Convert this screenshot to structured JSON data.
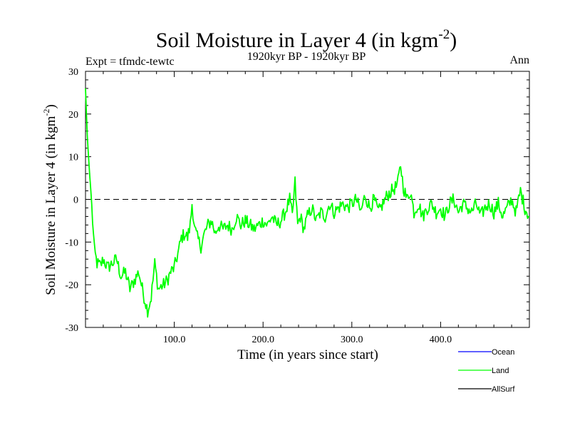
{
  "chart_data": {
    "type": "line",
    "title_main": "Soil Moisture in Layer 4 (in kgm",
    "title_exp": "-2",
    "title_close": ")",
    "subtitle": "1920kyr BP - 1920kyr BP",
    "expt_label": "Expt = tfmdc-tewtc",
    "season_label": "Ann",
    "xlabel": "Time (in years since start)",
    "ylabel_main": "Soil Moisture in Layer 4 (in kgm",
    "ylabel_exp": "-2",
    "ylabel_close": ")",
    "xlim": [
      0,
      500
    ],
    "ylim": [
      -30,
      30
    ],
    "x_ticks": [
      100,
      200,
      300,
      400
    ],
    "x_tick_labels": [
      "100.0",
      "200.0",
      "300.0",
      "400.0"
    ],
    "y_ticks": [
      -30,
      -20,
      -10,
      0,
      10,
      20,
      30
    ],
    "y_tick_labels": [
      "-30",
      "-20",
      "-10",
      "0",
      "10",
      "20",
      "30"
    ],
    "zero_line": 0,
    "legend": [
      {
        "name": "Ocean",
        "color": "#0000ff"
      },
      {
        "name": "Land",
        "color": "#00ff00"
      },
      {
        "name": "AllSurf",
        "color": "#000000"
      }
    ],
    "series": [
      {
        "name": "Land",
        "color": "#00ff00",
        "keypoints": [
          [
            0,
            26
          ],
          [
            2,
            15
          ],
          [
            4,
            8
          ],
          [
            6,
            2
          ],
          [
            8,
            -5
          ],
          [
            10,
            -12
          ],
          [
            13,
            -15
          ],
          [
            17,
            -15.5
          ],
          [
            20,
            -14
          ],
          [
            25,
            -16
          ],
          [
            30,
            -15
          ],
          [
            35,
            -14
          ],
          [
            40,
            -18
          ],
          [
            45,
            -17
          ],
          [
            50,
            -21
          ],
          [
            55,
            -19
          ],
          [
            60,
            -17
          ],
          [
            65,
            -22
          ],
          [
            70,
            -26
          ],
          [
            74,
            -23
          ],
          [
            78,
            -15
          ],
          [
            82,
            -21
          ],
          [
            88,
            -20
          ],
          [
            92,
            -19
          ],
          [
            96,
            -17
          ],
          [
            100,
            -16
          ],
          [
            105,
            -12
          ],
          [
            108,
            -9
          ],
          [
            112,
            -8
          ],
          [
            115,
            -9
          ],
          [
            118,
            -6
          ],
          [
            120,
            -1
          ],
          [
            123,
            -7
          ],
          [
            126,
            -9
          ],
          [
            130,
            -11
          ],
          [
            134,
            -8
          ],
          [
            138,
            -6
          ],
          [
            142,
            -5
          ],
          [
            146,
            -8
          ],
          [
            150,
            -6
          ],
          [
            155,
            -7
          ],
          [
            160,
            -6
          ],
          [
            165,
            -7
          ],
          [
            170,
            -4
          ],
          [
            175,
            -6
          ],
          [
            180,
            -5
          ],
          [
            185,
            -6
          ],
          [
            190,
            -7
          ],
          [
            195,
            -6
          ],
          [
            200,
            -5
          ],
          [
            205,
            -6
          ],
          [
            210,
            -4
          ],
          [
            215,
            -6
          ],
          [
            220,
            -5
          ],
          [
            225,
            -3
          ],
          [
            230,
            0
          ],
          [
            233,
            -4
          ],
          [
            236,
            4
          ],
          [
            239,
            -6
          ],
          [
            242,
            -4
          ],
          [
            246,
            -7
          ],
          [
            250,
            -4
          ],
          [
            255,
            -2
          ],
          [
            260,
            -5
          ],
          [
            265,
            -3
          ],
          [
            270,
            -4
          ],
          [
            275,
            -1
          ],
          [
            280,
            -3
          ],
          [
            285,
            -2
          ],
          [
            290,
            -1
          ],
          [
            295,
            -2
          ],
          [
            300,
            -1
          ],
          [
            305,
            0
          ],
          [
            310,
            -3
          ],
          [
            315,
            1
          ],
          [
            320,
            -2
          ],
          [
            325,
            0
          ],
          [
            330,
            -3
          ],
          [
            335,
            -1
          ],
          [
            340,
            1
          ],
          [
            345,
            2
          ],
          [
            350,
            3
          ],
          [
            352,
            4
          ],
          [
            355,
            8
          ],
          [
            358,
            3
          ],
          [
            362,
            0
          ],
          [
            366,
            2
          ],
          [
            370,
            -3
          ],
          [
            375,
            -1
          ],
          [
            380,
            -4
          ],
          [
            385,
            -2
          ],
          [
            390,
            -1
          ],
          [
            395,
            -3
          ],
          [
            400,
            -2
          ],
          [
            405,
            -4
          ],
          [
            410,
            -1
          ],
          [
            415,
            0
          ],
          [
            420,
            -3
          ],
          [
            425,
            -1
          ],
          [
            430,
            -2
          ],
          [
            435,
            -3
          ],
          [
            440,
            -1
          ],
          [
            445,
            -4
          ],
          [
            450,
            -2
          ],
          [
            455,
            -1
          ],
          [
            460,
            -3
          ],
          [
            465,
            -1
          ],
          [
            470,
            -4
          ],
          [
            475,
            -2
          ],
          [
            480,
            0
          ],
          [
            485,
            -3
          ],
          [
            490,
            2
          ],
          [
            495,
            -2
          ],
          [
            500,
            -4
          ]
        ]
      }
    ]
  }
}
